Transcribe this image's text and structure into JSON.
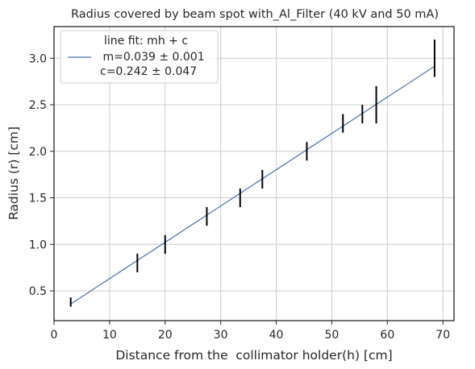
{
  "chart_data": {
    "type": "scatter",
    "title": "Radius covered by beam spot with_Al_Filter (40 kV and 50 mA)",
    "xlabel": "Distance from the  collimator holder(h) [cm]",
    "ylabel": "Radius (r) [cm]",
    "xlim": [
      0,
      72
    ],
    "ylim": [
      0.18,
      3.34
    ],
    "xticks": [
      0,
      10,
      20,
      30,
      40,
      50,
      60,
      70
    ],
    "yticks": [
      0.5,
      1.0,
      1.5,
      2.0,
      2.5,
      3.0
    ],
    "xtick_labels": [
      "0",
      "10",
      "20",
      "30",
      "40",
      "50",
      "60",
      "70"
    ],
    "ytick_labels": [
      "0.5",
      "1.0",
      "1.5",
      "2.0",
      "2.5",
      "3.0"
    ],
    "grid": true,
    "legend_position": "top-left",
    "series": [
      {
        "kind": "errorbar",
        "color": "#000000",
        "points": [
          {
            "x": 3.0,
            "y": 0.38,
            "yerr": 0.05
          },
          {
            "x": 15.0,
            "y": 0.8,
            "yerr": 0.1
          },
          {
            "x": 20.0,
            "y": 1.0,
            "yerr": 0.1
          },
          {
            "x": 27.5,
            "y": 1.3,
            "yerr": 0.1
          },
          {
            "x": 33.5,
            "y": 1.5,
            "yerr": 0.1
          },
          {
            "x": 37.5,
            "y": 1.7,
            "yerr": 0.1
          },
          {
            "x": 45.5,
            "y": 2.0,
            "yerr": 0.1
          },
          {
            "x": 52.0,
            "y": 2.3,
            "yerr": 0.1
          },
          {
            "x": 55.5,
            "y": 2.4,
            "yerr": 0.1
          },
          {
            "x": 58.0,
            "y": 2.5,
            "yerr": 0.2
          },
          {
            "x": 68.5,
            "y": 3.0,
            "yerr": 0.2
          }
        ]
      },
      {
        "kind": "line",
        "color": "#4c72b0",
        "slope": 0.039,
        "intercept": 0.242,
        "x": [
          3.0,
          68.5
        ]
      }
    ],
    "legend": {
      "title": "line fit: mh + c",
      "entry_line1": " m=0.039 ± 0.001",
      "entry_line2": "c=0.242 ± 0.047"
    }
  }
}
